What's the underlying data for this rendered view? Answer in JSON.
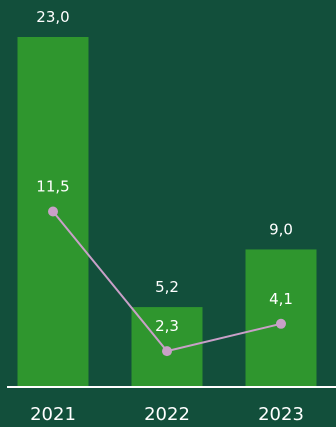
{
  "colors": {
    "background": "#124f3b",
    "bar": "#2f962e",
    "line": "#c9a0c8",
    "marker": "#c9a0c8",
    "axis": "#ffffff",
    "text": "#ffffff"
  },
  "chart_data": {
    "type": "bar",
    "categories": [
      "2021",
      "2022",
      "2023"
    ],
    "series": [
      {
        "type": "bar",
        "values": [
          23.0,
          5.2,
          9.0
        ],
        "labels": [
          "23,0",
          "5,2",
          "9,0"
        ]
      },
      {
        "type": "line",
        "values": [
          11.5,
          2.3,
          4.1
        ],
        "labels": [
          "11,5",
          "2,3",
          "4,1"
        ]
      }
    ],
    "ylim": [
      0,
      23.0
    ],
    "grid": false,
    "legend": "none"
  }
}
